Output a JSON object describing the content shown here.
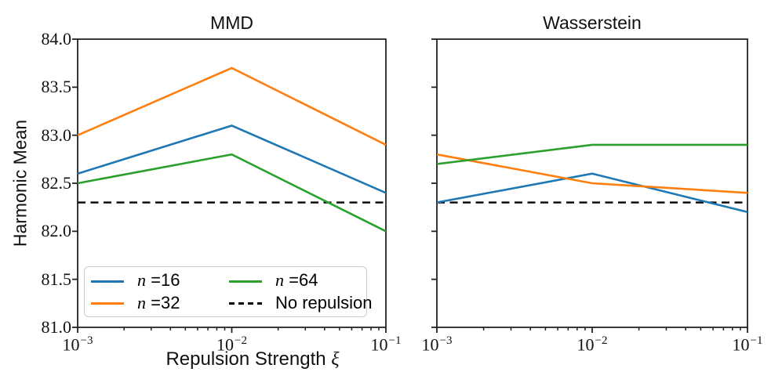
{
  "figure": {
    "ylabel": "Harmonic Mean",
    "xlabel_text": "Repulsion Strength ",
    "xlabel_math": "ξ",
    "background": "#ffffff",
    "spine_color": "#222222"
  },
  "legend": {
    "entries": [
      {
        "key": "n16",
        "math": "n",
        "rest": " =16",
        "color": "#1f77b4",
        "dashed": false
      },
      {
        "key": "n32",
        "math": "n",
        "rest": " =32",
        "color": "#ff7f0e",
        "dashed": false
      },
      {
        "key": "n64",
        "math": "n",
        "rest": " =64",
        "color": "#2ca02c",
        "dashed": false
      },
      {
        "key": "no-repulsion",
        "math": "",
        "rest": "No repulsion",
        "color": "#000000",
        "dashed": true
      }
    ]
  },
  "chart_data": [
    {
      "type": "line",
      "title": "MMD",
      "xscale": "log",
      "x": [
        0.001,
        0.01,
        0.1
      ],
      "xlim": [
        0.001,
        0.1
      ],
      "xtick_labels": [
        {
          "base": "10",
          "exp": "−3"
        },
        {
          "base": "10",
          "exp": "−2"
        },
        {
          "base": "10",
          "exp": "−1"
        }
      ],
      "xlabel": "Repulsion Strength ξ",
      "ylabel": "Harmonic Mean",
      "ylim": [
        81.0,
        84.0
      ],
      "yticks": [
        81.0,
        81.5,
        82.0,
        82.5,
        83.0,
        83.5,
        84.0
      ],
      "ytick_labels": [
        "81.0",
        "81.5",
        "82.0",
        "82.5",
        "83.0",
        "83.5",
        "84.0"
      ],
      "show_ytick_labels": true,
      "grid": false,
      "legend_position": "lower left",
      "series": [
        {
          "key": "n16",
          "name": "n =16",
          "color": "#1f77b4",
          "dashed": false,
          "values": [
            82.6,
            83.1,
            82.4
          ]
        },
        {
          "key": "n32",
          "name": "n =32",
          "color": "#ff7f0e",
          "dashed": false,
          "values": [
            83.0,
            83.7,
            82.9
          ]
        },
        {
          "key": "n64",
          "name": "n =64",
          "color": "#2ca02c",
          "dashed": false,
          "values": [
            82.5,
            82.8,
            82.0
          ]
        },
        {
          "key": "no-repulsion",
          "name": "No repulsion",
          "color": "#000000",
          "dashed": true,
          "values": [
            82.3,
            82.3,
            82.3
          ]
        }
      ]
    },
    {
      "type": "line",
      "title": "Wasserstein",
      "xscale": "log",
      "x": [
        0.001,
        0.01,
        0.1
      ],
      "xlim": [
        0.001,
        0.1
      ],
      "xtick_labels": [
        {
          "base": "10",
          "exp": "−3"
        },
        {
          "base": "10",
          "exp": "−2"
        },
        {
          "base": "10",
          "exp": "−1"
        }
      ],
      "xlabel": "",
      "ylabel": "",
      "ylim": [
        81.0,
        84.0
      ],
      "yticks": [
        81.0,
        81.5,
        82.0,
        82.5,
        83.0,
        83.5,
        84.0
      ],
      "ytick_labels": [],
      "show_ytick_labels": false,
      "grid": false,
      "series": [
        {
          "key": "n16",
          "name": "n =16",
          "color": "#1f77b4",
          "dashed": false,
          "values": [
            82.3,
            82.6,
            82.2
          ]
        },
        {
          "key": "n32",
          "name": "n =32",
          "color": "#ff7f0e",
          "dashed": false,
          "values": [
            82.8,
            82.5,
            82.4
          ]
        },
        {
          "key": "n64",
          "name": "n =64",
          "color": "#2ca02c",
          "dashed": false,
          "values": [
            82.7,
            82.9,
            82.9
          ]
        },
        {
          "key": "no-repulsion",
          "name": "No repulsion",
          "color": "#000000",
          "dashed": true,
          "values": [
            82.3,
            82.3,
            82.3
          ]
        }
      ]
    }
  ]
}
